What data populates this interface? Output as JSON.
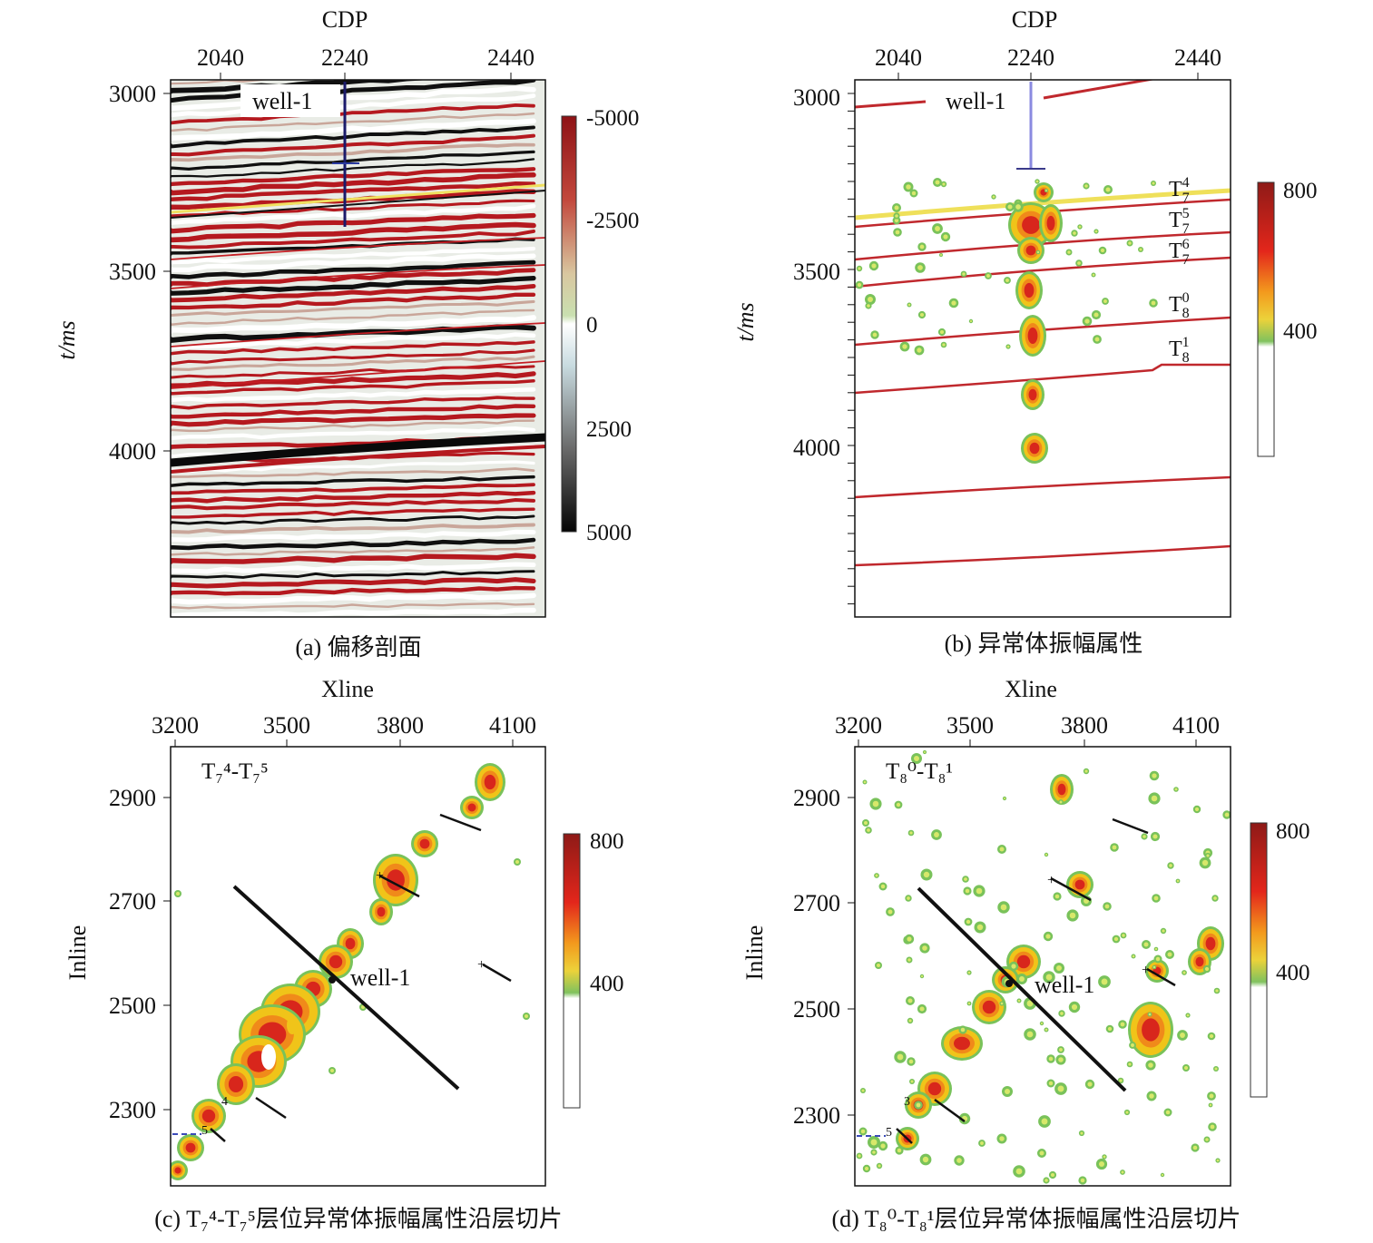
{
  "figure": {
    "panels": [
      {
        "id": "a",
        "caption": "(a) 偏移剖面",
        "xlabel": "CDP",
        "ylabel": "t/ms",
        "xticks": [
          "2040",
          "2240",
          "2440"
        ],
        "yticks": [
          "3000",
          "3500",
          "4000"
        ],
        "well_label": "well-1",
        "colorbar": {
          "ticks": [
            "-5000",
            "-2500",
            "0",
            "2500",
            "5000"
          ]
        }
      },
      {
        "id": "b",
        "caption": "(b) 异常体振幅属性",
        "xlabel": "CDP",
        "ylabel": "t/ms",
        "xticks": [
          "2040",
          "2240",
          "2440"
        ],
        "yticks": [
          "3000",
          "3500",
          "4000"
        ],
        "well_label": "well-1",
        "horizons": [
          {
            "base": "T",
            "sub": "7",
            "sup": "4"
          },
          {
            "base": "T",
            "sub": "7",
            "sup": "5"
          },
          {
            "base": "T",
            "sub": "7",
            "sup": "6"
          },
          {
            "base": "T",
            "sub": "8",
            "sup": "0"
          },
          {
            "base": "T",
            "sub": "8",
            "sup": "1"
          }
        ],
        "colorbar": {
          "ticks": [
            "800",
            "400"
          ]
        }
      },
      {
        "id": "c",
        "caption": "(c) T₇⁴-T₇⁵层位异常体振幅属性沿层切片",
        "inset_label": "T₇⁴-T₇⁵",
        "xlabel": "Xline",
        "ylabel": "Inline",
        "xticks": [
          "3200",
          "3500",
          "3800",
          "4100"
        ],
        "yticks": [
          "2900",
          "2700",
          "2500",
          "2300"
        ],
        "well_label": "well-1",
        "colorbar": {
          "ticks": [
            "800",
            "400"
          ]
        }
      },
      {
        "id": "d",
        "caption": "(d) T₈⁰-T₈¹层位异常体振幅属性沿层切片",
        "inset_label": "T₈⁰-T₈¹",
        "xlabel": "Xline",
        "ylabel": "Inline",
        "xticks": [
          "3200",
          "3500",
          "3800",
          "4100"
        ],
        "yticks": [
          "2900",
          "2700",
          "2500",
          "2300"
        ],
        "well_label": "well-1",
        "colorbar": {
          "ticks": [
            "800",
            "400"
          ]
        }
      }
    ]
  },
  "colors": {
    "seismic_red": "#b5191f",
    "seismic_black": "#101010",
    "attr_red": "#d8261c",
    "attr_yellow": "#f0c419",
    "attr_green": "#79c25a",
    "horizon_red": "#c0282d",
    "horizon_yellow": "#efe05a"
  }
}
